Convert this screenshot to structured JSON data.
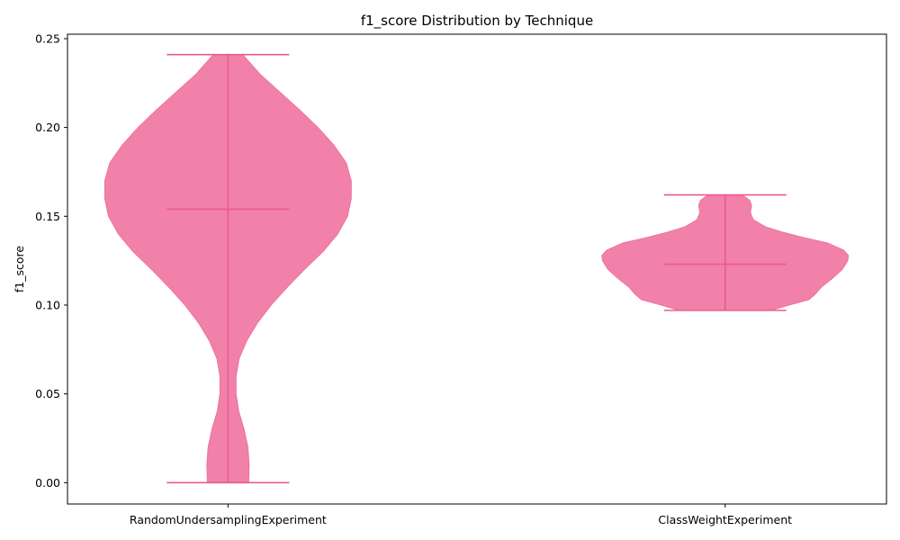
{
  "chart_data": {
    "type": "violin",
    "title": "f1_score Distribution by Technique",
    "xlabel": "",
    "ylabel": "f1_score",
    "ylim": [
      -0.012,
      0.2525
    ],
    "yticks": [
      0.0,
      0.05,
      0.1,
      0.15,
      0.2,
      0.25
    ],
    "ytick_labels": [
      "0.00",
      "0.05",
      "0.10",
      "0.15",
      "0.20",
      "0.25"
    ],
    "grid": false,
    "color": "#ee6b9a",
    "categories": [
      "RandomUndersamplingExperiment",
      "ClassWeightExperiment"
    ],
    "series": [
      {
        "category": "RandomUndersamplingExperiment",
        "min": 0.0,
        "max": 0.241,
        "median": 0.154,
        "density": [
          [
            0.0,
            0.168
          ],
          [
            0.01,
            0.172
          ],
          [
            0.02,
            0.162
          ],
          [
            0.03,
            0.131
          ],
          [
            0.04,
            0.088
          ],
          [
            0.05,
            0.066
          ],
          [
            0.06,
            0.066
          ],
          [
            0.07,
            0.091
          ],
          [
            0.08,
            0.153
          ],
          [
            0.09,
            0.24
          ],
          [
            0.1,
            0.35
          ],
          [
            0.11,
            0.48
          ],
          [
            0.12,
            0.62
          ],
          [
            0.13,
            0.77
          ],
          [
            0.14,
            0.89
          ],
          [
            0.15,
            0.97
          ],
          [
            0.16,
            1.0
          ],
          [
            0.17,
            1.0
          ],
          [
            0.18,
            0.96
          ],
          [
            0.19,
            0.86
          ],
          [
            0.2,
            0.73
          ],
          [
            0.21,
            0.58
          ],
          [
            0.22,
            0.42
          ],
          [
            0.23,
            0.26
          ],
          [
            0.241,
            0.12
          ]
        ]
      },
      {
        "category": "ClassWeightExperiment",
        "min": 0.097,
        "max": 0.162,
        "median": 0.123,
        "density": [
          [
            0.097,
            0.375
          ],
          [
            0.1,
            0.52
          ],
          [
            0.103,
            0.68
          ],
          [
            0.106,
            0.73
          ],
          [
            0.11,
            0.78
          ],
          [
            0.115,
            0.87
          ],
          [
            0.12,
            0.95
          ],
          [
            0.125,
            0.995
          ],
          [
            0.128,
            1.0
          ],
          [
            0.131,
            0.96
          ],
          [
            0.135,
            0.83
          ],
          [
            0.138,
            0.64
          ],
          [
            0.141,
            0.47
          ],
          [
            0.144,
            0.33
          ],
          [
            0.148,
            0.23
          ],
          [
            0.152,
            0.205
          ],
          [
            0.156,
            0.215
          ],
          [
            0.159,
            0.2
          ],
          [
            0.162,
            0.14
          ]
        ]
      }
    ]
  }
}
